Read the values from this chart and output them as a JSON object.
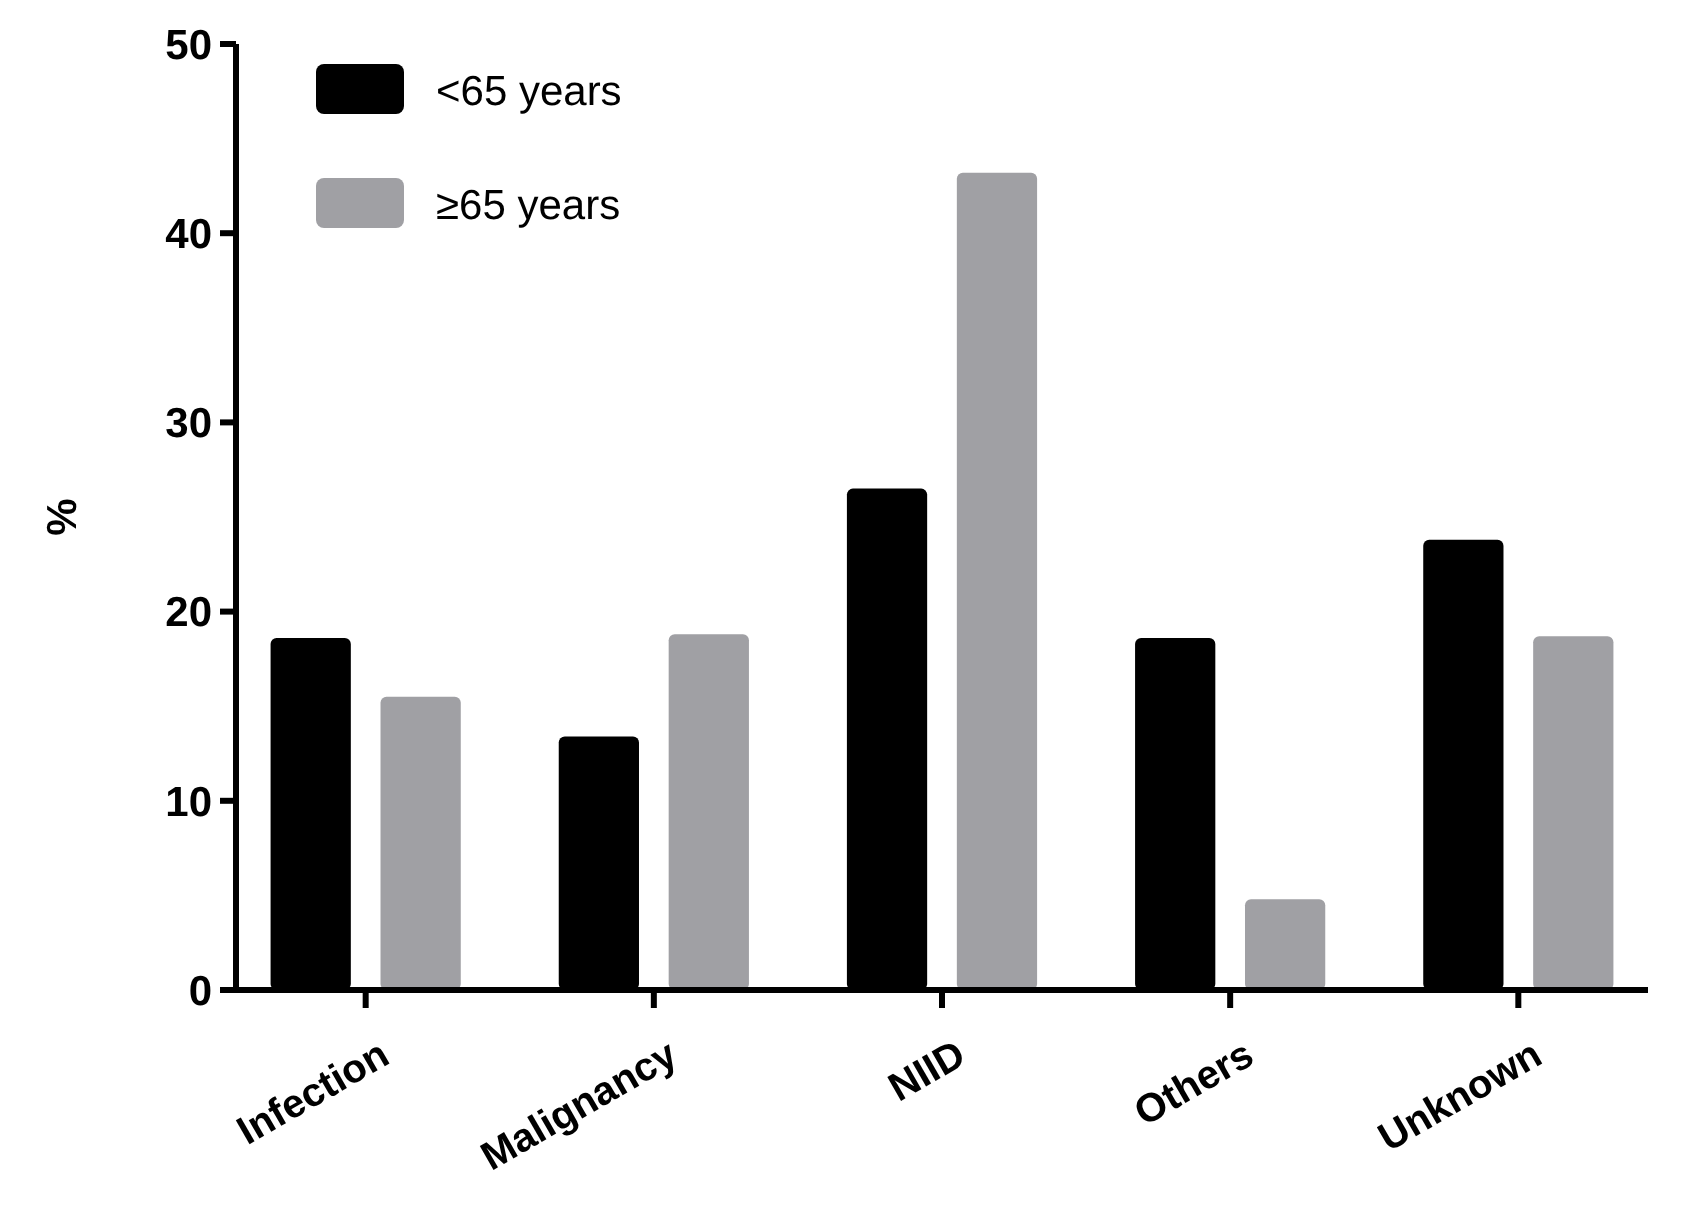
{
  "chart_data": {
    "type": "bar",
    "ylabel": "%",
    "categories": [
      "Infection",
      "Malignancy",
      "NIID",
      "Others",
      "Unknown"
    ],
    "series": [
      {
        "name": "<65 years",
        "color": "#000000",
        "values": [
          18.6,
          13.4,
          26.5,
          18.6,
          23.8
        ]
      },
      {
        "name": "≥65 years",
        "color": "#a0a0a4",
        "values": [
          15.5,
          18.8,
          43.2,
          4.8,
          18.7
        ]
      }
    ],
    "ylim": [
      0,
      50
    ],
    "yticks": [
      0,
      10,
      20,
      30,
      40,
      50
    ],
    "legend": "top left",
    "grid": false
  }
}
